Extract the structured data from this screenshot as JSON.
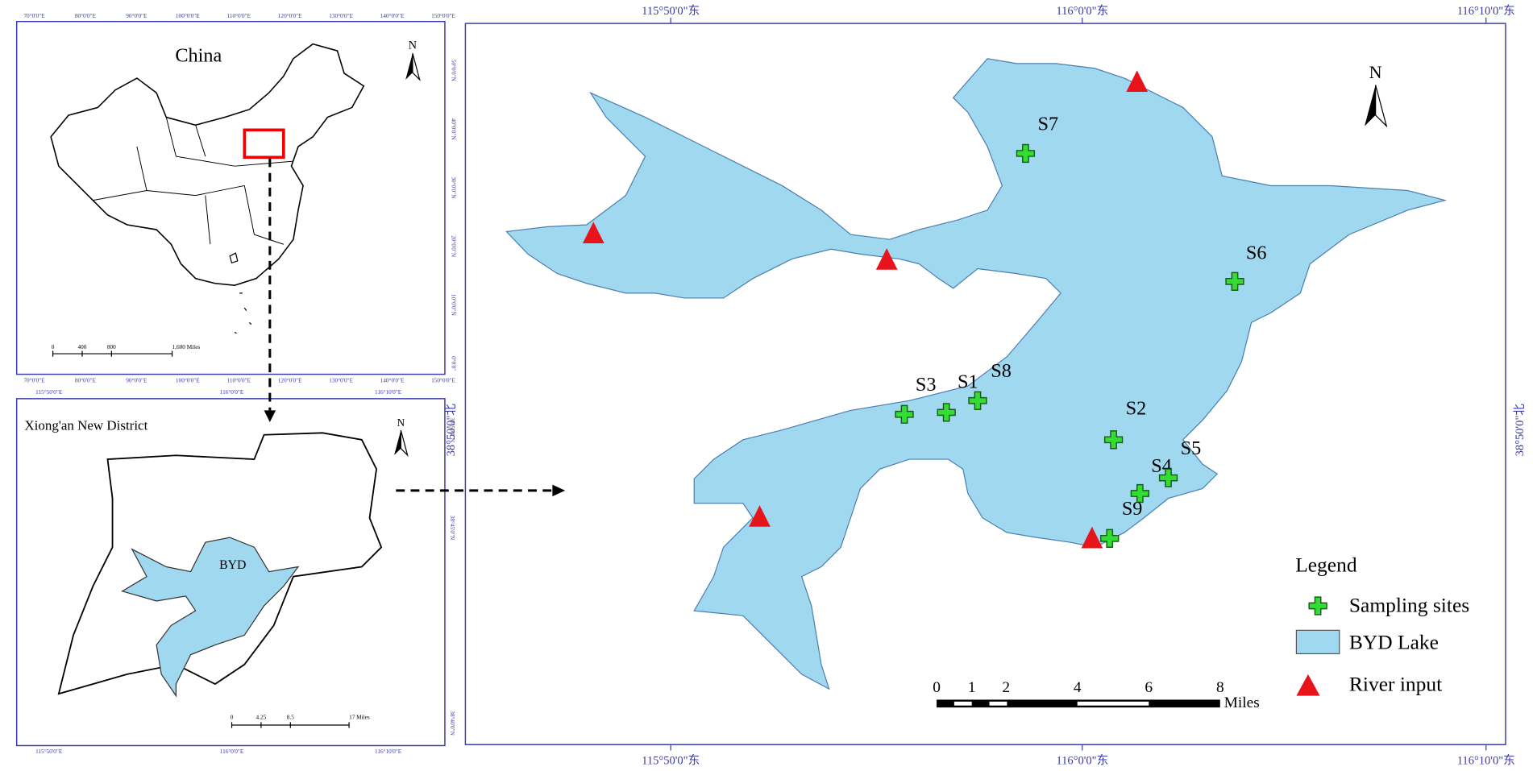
{
  "china_inset": {
    "title": "China",
    "north": "N",
    "scale_labels": [
      "0",
      "400",
      "800",
      "1,600 Miles"
    ],
    "lon_labels": [
      "70°0'0\"E",
      "80°0'0\"E",
      "90°0'0\"E",
      "100°0'0\"E",
      "110°0'0\"E",
      "120°0'0\"E",
      "130°0'0\"E",
      "140°0'0\"E",
      "150°0'0\"E"
    ],
    "lat_labels": [
      "50°0'0\"N",
      "40°0'0\"N",
      "30°0'0\"N",
      "20°0'0\"N",
      "10°0'0\"N",
      "0°0'0\""
    ]
  },
  "xiongan_inset": {
    "title": "Xiong'an New District",
    "north": "N",
    "lake_label": "BYD",
    "scale_labels": [
      "0",
      "4.25",
      "8.5",
      "17 Miles"
    ],
    "lon_labels": [
      "115°50'0\"E",
      "116°0'0\"E",
      "116°10'0\"E"
    ],
    "lat_labels": [
      "38°50'0\"N",
      "38°45'0\"N",
      "38°40'0\"N"
    ]
  },
  "main_map": {
    "north": "N",
    "lon_labels": [
      "115°50'0\"东",
      "116°0'0\"东",
      "116°10'0\"东"
    ],
    "lat_label": "38°50'0\"北",
    "sites": [
      "S1",
      "S2",
      "S3",
      "S4",
      "S5",
      "S6",
      "S7",
      "S8",
      "S9"
    ],
    "scale_labels": [
      "0",
      "1",
      "2",
      "4",
      "6",
      "8"
    ],
    "scale_unit": "Miles",
    "legend": {
      "title": "Legend",
      "items": [
        "Sampling sites",
        "BYD Lake",
        "River input"
      ]
    }
  }
}
